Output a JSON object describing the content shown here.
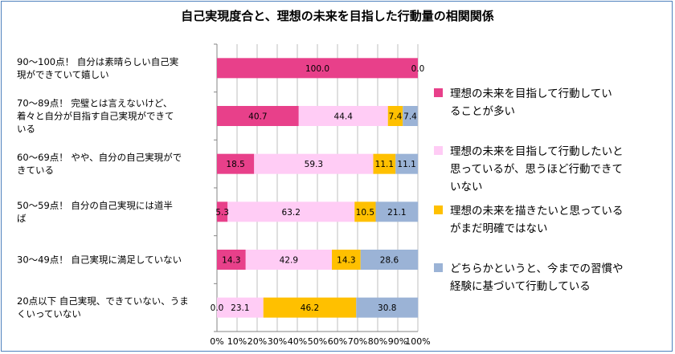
{
  "chart_data": {
    "type": "bar",
    "orientation": "horizontal",
    "stacked": "percent",
    "title": "自己実現度合と、理想の未来を目指した行動量の相関関係",
    "categories": [
      [
        "90〜100点！ 自分は素晴らしい自己実",
        "現ができていて嬉しい"
      ],
      [
        "70〜89点！ 完璧とは言えないけど、",
        "着々と自分が目指す自己実現ができて",
        "いる"
      ],
      [
        "60〜69点！ やや、自分の自己実現がで",
        "きている"
      ],
      [
        "50〜59点！ 自分の自己実現には道半",
        "ば"
      ],
      [
        "30〜49点！ 自己実現に満足していない"
      ],
      [
        "20点以下 自己実現、できていない、うま",
        "くいっていない"
      ]
    ],
    "series": [
      {
        "name": "理想の未来を目指して行動していることが多い",
        "legend_lines": [
          "理想の未来を目指して行動してい",
          "ることが多い"
        ],
        "color": "#e8408a",
        "values": [
          100.0,
          40.7,
          18.5,
          5.3,
          14.3,
          0.0
        ]
      },
      {
        "name": "理想の未来を目指して行動したいと思っているが、思うほど行動できていない",
        "legend_lines": [
          "理想の未来を目指して行動したいと",
          "思っているが、思うほど行動できて",
          "いない"
        ],
        "color": "#ffccf5",
        "values": [
          null,
          44.4,
          59.3,
          63.2,
          42.9,
          23.1
        ]
      },
      {
        "name": "理想の未来を描きたいと思っているがまだ明確ではない",
        "legend_lines": [
          "理想の未来を描きたいと思っている",
          "がまだ明確ではない"
        ],
        "color": "#ffc000",
        "values": [
          null,
          7.4,
          11.1,
          10.5,
          14.3,
          46.2
        ]
      },
      {
        "name": "どちらかというと、今までの習慣や経験に基づいて行動している",
        "legend_lines": [
          "どちらかというと、今までの習慣や",
          "経験に基づいて行動している"
        ],
        "color": "#9bb3d6",
        "values": [
          0.0,
          7.4,
          11.1,
          21.1,
          28.6,
          30.8
        ]
      }
    ],
    "value_labels": [
      [
        "100.0",
        null,
        null,
        "0.0"
      ],
      [
        "40.7",
        "44.4",
        "7.4",
        "7.4"
      ],
      [
        "18.5",
        "59.3",
        "11.1",
        "11.1"
      ],
      [
        "5.3",
        "63.2",
        "10.5",
        "21.1"
      ],
      [
        "14.3",
        "42.9",
        "14.3",
        "28.6"
      ],
      [
        "0.0",
        "23.1",
        "46.2",
        "30.8"
      ]
    ],
    "xlim": [
      0,
      100
    ],
    "xticks": [
      "0%",
      "10%",
      "20%",
      "30%",
      "40%",
      "50%",
      "60%",
      "70%",
      "80%",
      "90%",
      "100%"
    ],
    "grid": true,
    "legend_position": "right"
  }
}
